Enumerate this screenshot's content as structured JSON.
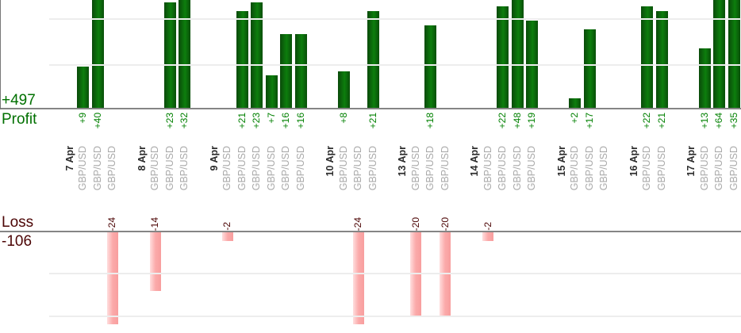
{
  "chart_data": {
    "type": "bar",
    "title": "",
    "profit": {
      "axis_label": "Profit",
      "total_label": "+497",
      "total": 497,
      "gridline_values": [
        10,
        20
      ],
      "bar_color": "#0d7e0d",
      "text_color": "#007000"
    },
    "loss": {
      "axis_label": "Loss",
      "total_label": "-106",
      "total": -106,
      "gridline_values": [
        -10,
        -20
      ],
      "bar_color": "#fbaaaa",
      "text_color": "#4c0505"
    },
    "groups": [
      {
        "date": "7 Apr",
        "trades": [
          {
            "symbol": "GBP/USD",
            "label": "+9",
            "value": 9
          },
          {
            "symbol": "GBP/USD",
            "label": "+40",
            "value": 40
          },
          {
            "symbol": "GBP/USD",
            "label": "-24",
            "value": -24
          }
        ]
      },
      {
        "date": "8 Apr",
        "trades": [
          {
            "symbol": "GBP/USD",
            "label": "-14",
            "value": -14
          },
          {
            "symbol": "GBP/USD",
            "label": "+23",
            "value": 23
          },
          {
            "symbol": "GBP/USD",
            "label": "+32",
            "value": 32
          }
        ]
      },
      {
        "date": "9 Apr",
        "trades": [
          {
            "symbol": "GBP/USD",
            "label": "-2",
            "value": -2
          },
          {
            "symbol": "GBP/USD",
            "label": "+21",
            "value": 21
          },
          {
            "symbol": "GBP/USD",
            "label": "+23",
            "value": 23
          },
          {
            "symbol": "GBP/USD",
            "label": "+7",
            "value": 7
          },
          {
            "symbol": "GBP/USD",
            "label": "+16",
            "value": 16
          },
          {
            "symbol": "GBP/USD",
            "label": "+16",
            "value": 16
          }
        ]
      },
      {
        "date": "10 Apr",
        "trades": [
          {
            "symbol": "GBP/USD",
            "label": "+8",
            "value": 8
          },
          {
            "symbol": "GBP/USD",
            "label": "-24",
            "value": -24
          },
          {
            "symbol": "GBP/USD",
            "label": "+21",
            "value": 21
          }
        ]
      },
      {
        "date": "13 Apr",
        "trades": [
          {
            "symbol": "GBP/USD",
            "label": "-20",
            "value": -20
          },
          {
            "symbol": "GBP/USD",
            "label": "+18",
            "value": 18
          },
          {
            "symbol": "GBP/USD",
            "label": "-20",
            "value": -20
          }
        ]
      },
      {
        "date": "14 Apr",
        "trades": [
          {
            "symbol": "GBP/USD",
            "label": "-2",
            "value": -2
          },
          {
            "symbol": "GBP/USD",
            "label": "+22",
            "value": 22
          },
          {
            "symbol": "GBP/USD",
            "label": "+48",
            "value": 48
          },
          {
            "symbol": "GBP/USD",
            "label": "+19",
            "value": 19
          }
        ]
      },
      {
        "date": "15 Apr",
        "trades": [
          {
            "symbol": "GBP/USD",
            "label": "+2",
            "value": 2
          },
          {
            "symbol": "GBP/USD",
            "label": "+17",
            "value": 17
          },
          {
            "symbol": "GBP/USD",
            "label": "",
            "value": 0
          }
        ]
      },
      {
        "date": "16 Apr",
        "trades": [
          {
            "symbol": "GBP/USD",
            "label": "+22",
            "value": 22
          },
          {
            "symbol": "GBP/USD",
            "label": "+21",
            "value": 21
          }
        ]
      },
      {
        "date": "17 Apr",
        "trades": [
          {
            "symbol": "GBP/USD",
            "label": "+13",
            "value": 13
          },
          {
            "symbol": "GBP/USD",
            "label": "+64",
            "value": 64
          },
          {
            "symbol": "GBP/USD",
            "label": "+35",
            "value": 35
          }
        ]
      }
    ],
    "layout_hints": {
      "grid": true,
      "profit_bars_clipped_at_top": true,
      "loss_bars_clipped_at_bottom": true,
      "axis_line_color": "#858585",
      "gridline_color": "#ededed",
      "symbol_text_color": "#a9a9a9",
      "date_text_color": "#2e2e2e"
    }
  }
}
